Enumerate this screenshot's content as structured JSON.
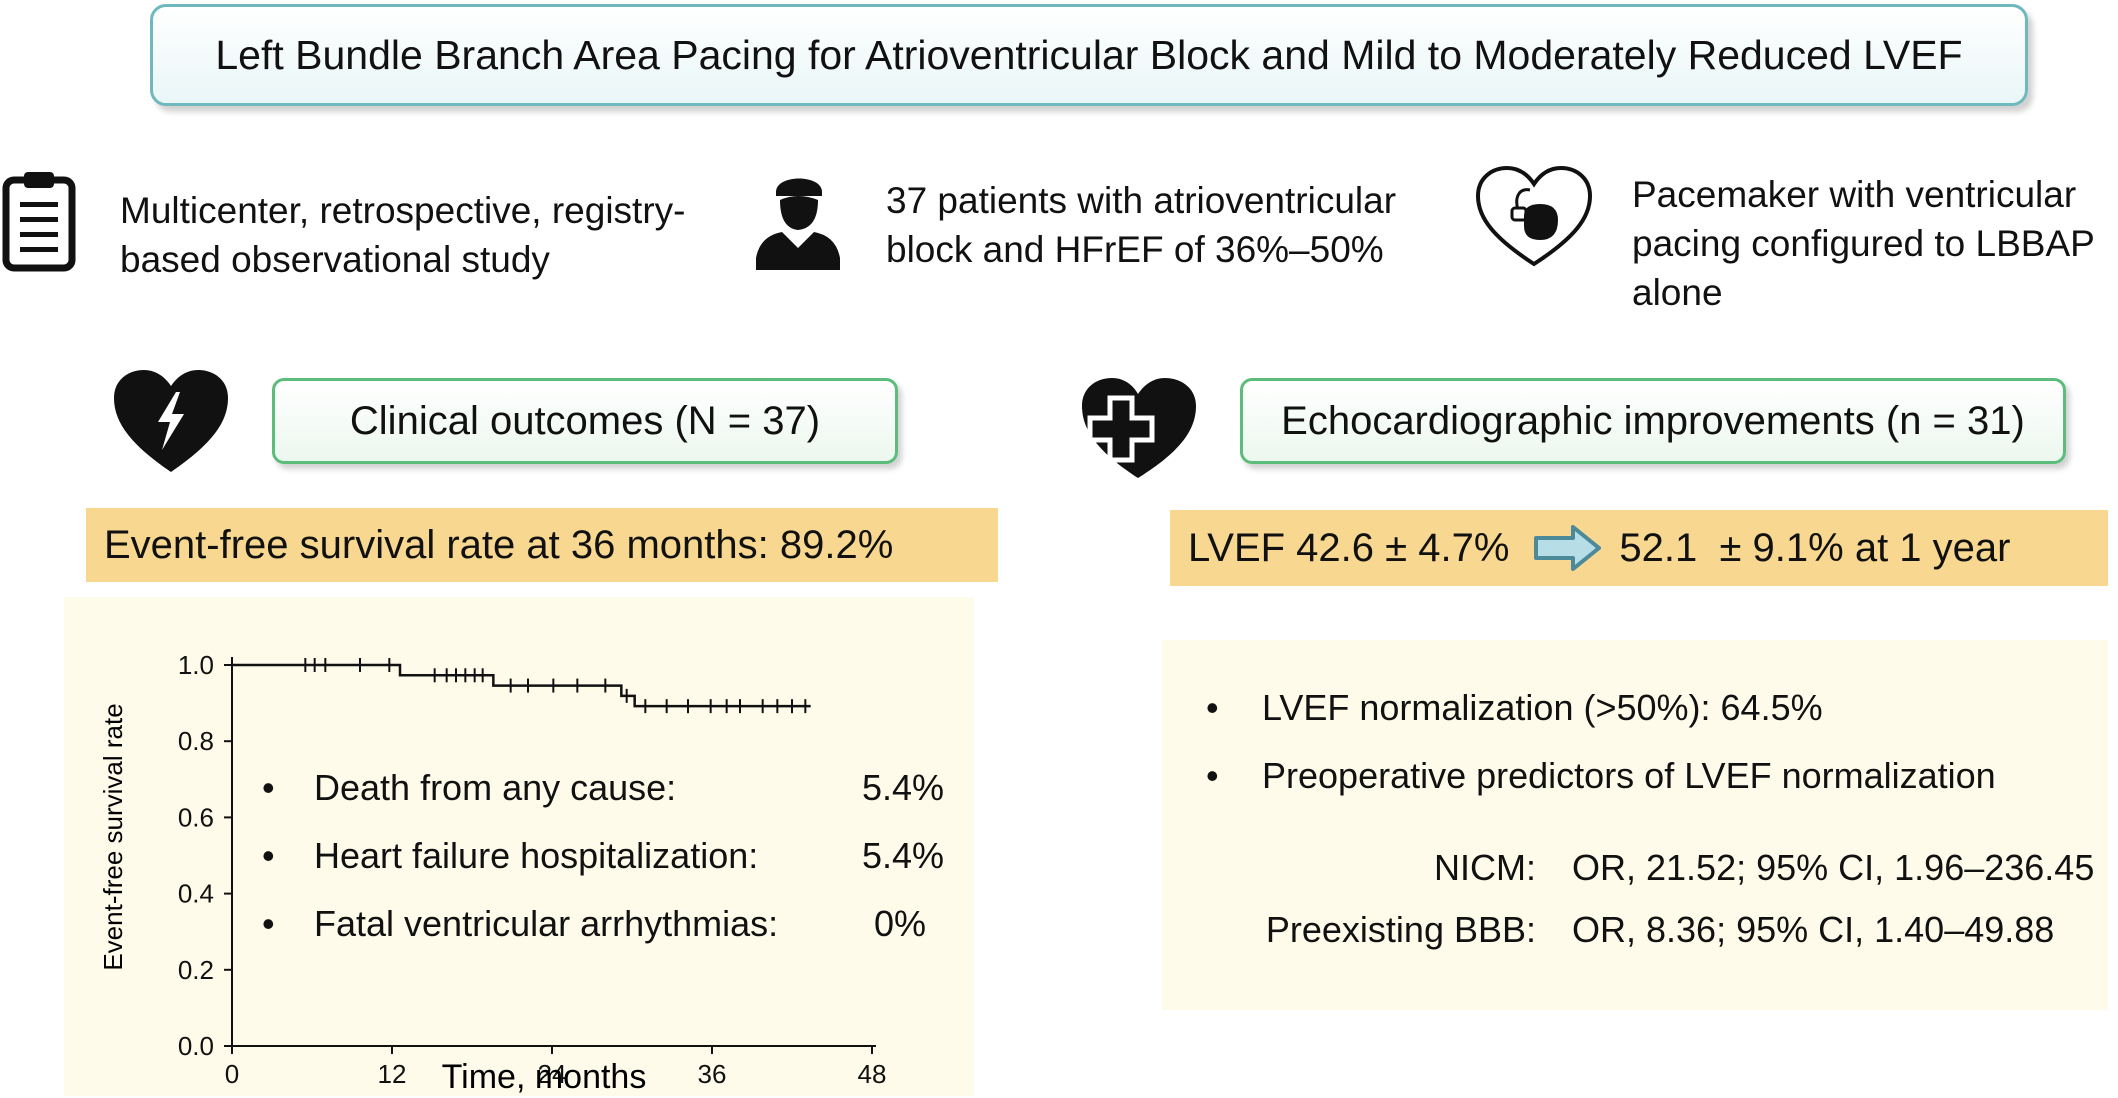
{
  "title": "Left Bundle Branch Area Pacing for Atrioventricular Block and Mild to Moderately Reduced LVEF",
  "info": [
    {
      "icon": "clipboard-icon",
      "text": "Multicenter, retrospective, registry-based observational study"
    },
    {
      "icon": "patient-icon",
      "text": "37 patients with atrioventricular block and HFrEF of 36%–50%"
    },
    {
      "icon": "pacemaker-heart-icon",
      "text": "Pacemaker with ventricular pacing configured to LBBAP alone"
    }
  ],
  "left": {
    "header": "Clinical outcomes (N = 37)",
    "highlight": "Event-free survival rate at 36 months: 89.2%",
    "outcomes": [
      {
        "label": "Death from any cause:",
        "value": "5.4%"
      },
      {
        "label": "Heart failure hospitalization:",
        "value": "5.4%"
      },
      {
        "label": "Fatal ventricular arrhythmias:",
        "value": "0%"
      }
    ]
  },
  "right": {
    "header": "Echocardiographic improvements (n = 31)",
    "highlight_before": "LVEF 42.6 ± 4.7%",
    "highlight_after": "52.1  ± 9.1% at 1 year",
    "bullets": [
      "LVEF normalization (>50%): 64.5%",
      "Preoperative predictors of LVEF normalization"
    ],
    "predictors": [
      {
        "label": "NICM:",
        "value": "OR, 21.52; 95% CI, 1.96–236.45"
      },
      {
        "label": "Preexisting BBB:",
        "value": "OR, 8.36; 95% CI, 1.40–49.88"
      }
    ]
  },
  "chart_data": {
    "type": "line",
    "xlabel": "Time, months",
    "ylabel": "Event-free survival rate",
    "xlim": [
      0,
      48
    ],
    "ylim": [
      0,
      1
    ],
    "xticks": [
      0,
      12,
      24,
      36,
      48
    ],
    "yticks": [
      0.0,
      0.2,
      0.4,
      0.6,
      0.8,
      1.0
    ],
    "x_tick_labels": [
      "0",
      "12",
      "24",
      "36",
      "48"
    ],
    "y_tick_labels": [
      "0.0",
      "0.2",
      "0.4",
      "0.6",
      "0.8",
      "1.0"
    ],
    "steps": [
      {
        "x": 0,
        "y": 1.0
      },
      {
        "x": 12.6,
        "y": 0.973
      },
      {
        "x": 19.6,
        "y": 0.946
      },
      {
        "x": 29.2,
        "y": 0.919
      },
      {
        "x": 30.2,
        "y": 0.892
      },
      {
        "x": 43.4,
        "y": 0.892
      }
    ],
    "censored": [
      {
        "x": 5.5,
        "y": 1.0
      },
      {
        "x": 6.2,
        "y": 1.0
      },
      {
        "x": 7.0,
        "y": 1.0
      },
      {
        "x": 9.6,
        "y": 1.0
      },
      {
        "x": 11.8,
        "y": 1.0
      },
      {
        "x": 15.2,
        "y": 0.973
      },
      {
        "x": 16.1,
        "y": 0.973
      },
      {
        "x": 16.8,
        "y": 0.973
      },
      {
        "x": 17.5,
        "y": 0.973
      },
      {
        "x": 18.2,
        "y": 0.973
      },
      {
        "x": 18.8,
        "y": 0.973
      },
      {
        "x": 20.9,
        "y": 0.946
      },
      {
        "x": 22.2,
        "y": 0.946
      },
      {
        "x": 24.1,
        "y": 0.946
      },
      {
        "x": 25.9,
        "y": 0.946
      },
      {
        "x": 28.0,
        "y": 0.946
      },
      {
        "x": 29.6,
        "y": 0.919
      },
      {
        "x": 31.0,
        "y": 0.892
      },
      {
        "x": 32.6,
        "y": 0.892
      },
      {
        "x": 34.2,
        "y": 0.892
      },
      {
        "x": 35.9,
        "y": 0.892
      },
      {
        "x": 37.1,
        "y": 0.892
      },
      {
        "x": 38.1,
        "y": 0.892
      },
      {
        "x": 39.8,
        "y": 0.892
      },
      {
        "x": 40.9,
        "y": 0.892
      },
      {
        "x": 42.0,
        "y": 0.892
      },
      {
        "x": 43.0,
        "y": 0.892
      }
    ]
  },
  "colors": {
    "title_border": "#6fb8bd",
    "section_border": "#5cbc7a",
    "highlight": "#f8d890",
    "panel": "#fefbea",
    "arrow_fill": "#b7dde6",
    "arrow_stroke": "#4c8a9a"
  }
}
